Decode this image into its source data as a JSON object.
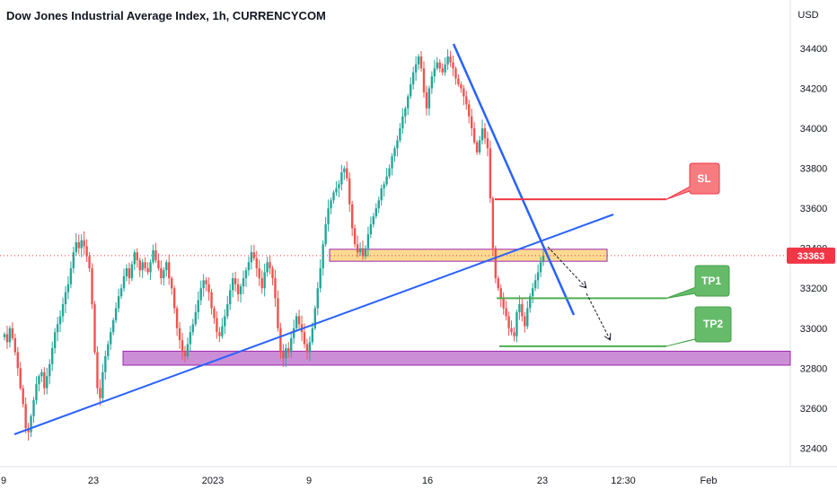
{
  "chart_data": {
    "type": "candlestick",
    "title": "Dow Jones Industrial Average Index, 1h, CURRENCYCOM",
    "currency_label": "USD",
    "current_price": "33363",
    "ylim": [
      32330,
      34530
    ],
    "y_ticks": [
      "32400",
      "32600",
      "32800",
      "33000",
      "33200",
      "33400",
      "33600",
      "33800",
      "34000",
      "34200",
      "34400"
    ],
    "x_ticks": [
      "9",
      "23",
      "2023",
      "9",
      "16",
      "23",
      "12:30",
      "Feb"
    ],
    "colors": {
      "up": "#26a69a",
      "down": "#ef5350",
      "trendline": "#2962ff",
      "sl": "#f23645",
      "tp": "#4caf50",
      "resistance_zone": "#fcd47e",
      "support_zone": "#ba68c8",
      "price_tag": "#f23645"
    },
    "closes": [
      32970,
      32930,
      33000,
      32950,
      32880,
      32800,
      32700,
      32620,
      32500,
      32480,
      32560,
      32640,
      32720,
      32760,
      32780,
      32700,
      32760,
      32820,
      32900,
      32980,
      33020,
      33060,
      33120,
      33180,
      33220,
      33300,
      33380,
      33430,
      33400,
      33440,
      33410,
      33360,
      33300,
      33120,
      32880,
      32700,
      32650,
      32780,
      32860,
      32920,
      32980,
      33040,
      33100,
      33160,
      33200,
      33260,
      33300,
      33250,
      33320,
      33380,
      33340,
      33290,
      33330,
      33300,
      33280,
      33330,
      33390,
      33340,
      33300,
      33250,
      33290,
      33330,
      33250,
      33200,
      33100,
      33000,
      32940,
      32880,
      32860,
      32920,
      32980,
      33020,
      33080,
      33140,
      33200,
      33240,
      33220,
      33180,
      33100,
      33050,
      32980,
      32960,
      33010,
      33060,
      33120,
      33190,
      33250,
      33220,
      33170,
      33210,
      33250,
      33290,
      33330,
      33380,
      33350,
      33300,
      33250,
      33200,
      33280,
      33330,
      33300,
      33250,
      33150,
      33000,
      32880,
      32850,
      32900,
      32880,
      32950,
      33000,
      33060,
      33020,
      32980,
      32920,
      32880,
      32930,
      33000,
      33100,
      33200,
      33300,
      33420,
      33520,
      33600,
      33640,
      33680,
      33700,
      33720,
      33780,
      33800,
      33750,
      33620,
      33500,
      33420,
      33380,
      33400,
      33360,
      33400,
      33470,
      33520,
      33560,
      33600,
      33640,
      33700,
      33720,
      33760,
      33800,
      33860,
      33900,
      33940,
      34000,
      34060,
      34100,
      34160,
      34220,
      34280,
      34320,
      34360,
      34300,
      34180,
      34100,
      34200,
      34260,
      34300,
      34330,
      34300,
      34280,
      34320,
      34360,
      34330,
      34300,
      34250,
      34220,
      34200,
      34160,
      34120,
      34060,
      34000,
      33930,
      33880,
      33940,
      34000,
      33950,
      33900,
      33650,
      33400,
      33250,
      33200,
      33150,
      33100,
      33060,
      33000,
      32980,
      32960,
      33080,
      33120,
      33060,
      33010,
      33100,
      33160,
      33200,
      33240,
      33280,
      33330,
      33363
    ]
  },
  "annotations": {
    "sl_label": "SL",
    "tp1_label": "TP1",
    "tp2_label": "TP2"
  }
}
